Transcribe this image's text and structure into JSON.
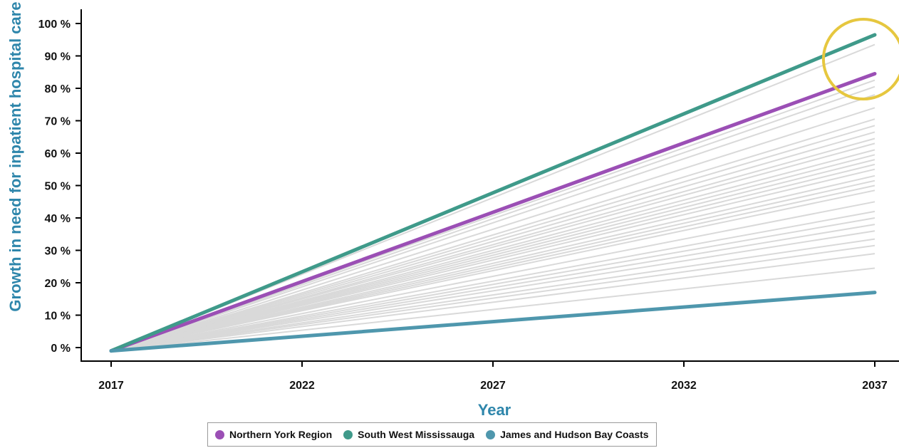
{
  "chart_data": {
    "type": "line",
    "xlabel": "Year",
    "ylabel": "Growth in need for inpatient hospital care",
    "x_ticks": [
      "2017",
      "2022",
      "2027",
      "2032",
      "2037"
    ],
    "y_ticks": [
      "0 %",
      "10 %",
      "20 %",
      "30 %",
      "40 %",
      "50 %",
      "60 %",
      "70 %",
      "80 %",
      "90 %",
      "100 %"
    ],
    "xlim": [
      2017,
      2037
    ],
    "ylim": [
      0,
      100
    ],
    "grid": false,
    "legend_position": "bottom",
    "highlight_series": [
      {
        "name": "Northern York Region",
        "color": "#9b4fb5",
        "x": [
          2017,
          2037
        ],
        "y": [
          -1,
          84.5
        ]
      },
      {
        "name": "South West Mississauga",
        "color": "#3f9a8a",
        "x": [
          2017,
          2037
        ],
        "y": [
          -1,
          96.5
        ]
      },
      {
        "name": "James and Hudson Bay Coasts",
        "color": "#4f97ad",
        "x": [
          2017,
          2037
        ],
        "y": [
          -1,
          17
        ]
      }
    ],
    "background_series_color": "#d9d9d9",
    "background_series": [
      {
        "x": [
          2017,
          2037
        ],
        "y": [
          -1,
          93.5
        ]
      },
      {
        "x": [
          2017,
          2037
        ],
        "y": [
          -1,
          82.5
        ]
      },
      {
        "x": [
          2017,
          2037
        ],
        "y": [
          -1,
          80.5
        ]
      },
      {
        "x": [
          2017,
          2037
        ],
        "y": [
          -1,
          78
        ]
      },
      {
        "x": [
          2017,
          2037
        ],
        "y": [
          -1,
          74
        ]
      },
      {
        "x": [
          2017,
          2037
        ],
        "y": [
          -1,
          70.5
        ]
      },
      {
        "x": [
          2017,
          2037
        ],
        "y": [
          -1,
          68.5
        ]
      },
      {
        "x": [
          2017,
          2037
        ],
        "y": [
          -1,
          66.5
        ]
      },
      {
        "x": [
          2017,
          2037
        ],
        "y": [
          -1,
          64.5
        ]
      },
      {
        "x": [
          2017,
          2037
        ],
        "y": [
          -1,
          63
        ]
      },
      {
        "x": [
          2017,
          2037
        ],
        "y": [
          -1,
          61
        ]
      },
      {
        "x": [
          2017,
          2037
        ],
        "y": [
          -1,
          59.5
        ]
      },
      {
        "x": [
          2017,
          2037
        ],
        "y": [
          -1,
          58
        ]
      },
      {
        "x": [
          2017,
          2037
        ],
        "y": [
          -1,
          56.5
        ]
      },
      {
        "x": [
          2017,
          2037
        ],
        "y": [
          -1,
          55
        ]
      },
      {
        "x": [
          2017,
          2037
        ],
        "y": [
          -1,
          53
        ]
      },
      {
        "x": [
          2017,
          2037
        ],
        "y": [
          -1,
          51.5
        ]
      },
      {
        "x": [
          2017,
          2037
        ],
        "y": [
          -1,
          50
        ]
      },
      {
        "x": [
          2017,
          2037
        ],
        "y": [
          -1,
          48.5
        ]
      },
      {
        "x": [
          2017,
          2037
        ],
        "y": [
          -1,
          45
        ]
      },
      {
        "x": [
          2017,
          2037
        ],
        "y": [
          -1,
          42
        ]
      },
      {
        "x": [
          2017,
          2037
        ],
        "y": [
          -1,
          40
        ]
      },
      {
        "x": [
          2017,
          2037
        ],
        "y": [
          -1,
          38
        ]
      },
      {
        "x": [
          2017,
          2037
        ],
        "y": [
          -1,
          36
        ]
      },
      {
        "x": [
          2017,
          2037
        ],
        "y": [
          -1,
          33.5
        ]
      },
      {
        "x": [
          2017,
          2037
        ],
        "y": [
          -1,
          31.5
        ]
      },
      {
        "x": [
          2017,
          2037
        ],
        "y": [
          -1,
          29
        ]
      },
      {
        "x": [
          2017,
          2037
        ],
        "y": [
          -1,
          24.5
        ]
      }
    ],
    "annotation": {
      "shape": "circle",
      "color": "#e6c73f",
      "x": 2036.7,
      "y": 89
    }
  }
}
